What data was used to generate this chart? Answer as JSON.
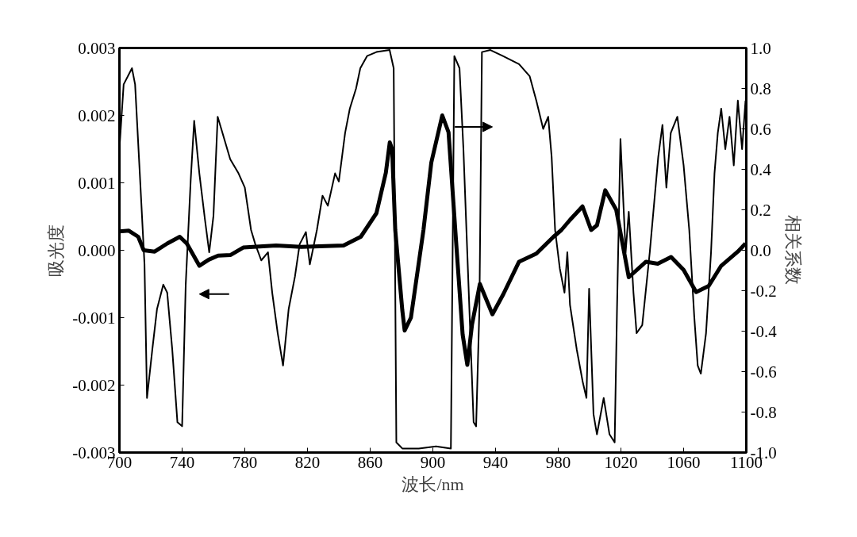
{
  "chart_data": {
    "type": "line",
    "xlabel": "波长/nm",
    "ylabel": "吸光度",
    "y2label": "相关系数",
    "xlim": [
      700,
      1100
    ],
    "xticks": [
      700,
      740,
      780,
      820,
      860,
      900,
      940,
      980,
      1020,
      1060,
      1100
    ],
    "ylim": [
      -0.003,
      0.003
    ],
    "yticks": [
      {
        "value": 0.003,
        "label": "0.003"
      },
      {
        "value": 0.002,
        "label": "0.002"
      },
      {
        "value": 0.001,
        "label": "0.001"
      },
      {
        "value": 0,
        "label": "0.000"
      },
      {
        "value": -0.001,
        "label": "-0.001"
      },
      {
        "value": -0.002,
        "label": "-0.002"
      },
      {
        "value": -0.003,
        "label": "-0.003"
      }
    ],
    "y2lim": [
      -1.0,
      1.0
    ],
    "y2ticks": [
      {
        "value": 1,
        "label": "1.0"
      },
      {
        "value": 0.8,
        "label": "0.8"
      },
      {
        "value": 0.6,
        "label": "0.6"
      },
      {
        "value": 0.4,
        "label": "0.4"
      },
      {
        "value": 0.2,
        "label": "0.2"
      },
      {
        "value": 0,
        "label": "0.0"
      },
      {
        "value": -0.2,
        "label": "-0.2"
      },
      {
        "value": -0.4,
        "label": "-0.4"
      },
      {
        "value": -0.6,
        "label": "-0.6"
      },
      {
        "value": -0.8,
        "label": "-0.8"
      },
      {
        "value": -1,
        "label": "-1.0"
      }
    ],
    "grid": false,
    "marker": "none",
    "line_style": "solid",
    "series": [
      {
        "color": "#000000",
        "x": [
          700,
          706,
          712,
          715.5,
          722.5,
          730.5,
          738.5,
          743,
          751,
          757,
          763,
          771,
          779,
          800,
          816,
          843,
          854,
          864,
          870,
          872.5,
          874,
          876,
          880.5,
          882,
          886,
          894,
          899,
          906,
          910,
          915,
          919,
          922,
          925,
          930,
          938,
          945,
          955,
          966,
          977,
          982,
          987.5,
          995.5,
          1001,
          1004.7,
          1010,
          1017,
          1025,
          1036,
          1043.5,
          1052,
          1060,
          1068,
          1076,
          1084,
          1094.6,
          1099.5
        ],
        "values": [
          0.00028,
          0.00029,
          0.0002,
          0,
          -2e-05,
          0.0001,
          0.0002,
          0.0001,
          -0.00023,
          -0.00014,
          -8e-05,
          -7e-05,
          4e-05,
          7e-05,
          5e-05,
          7e-05,
          0.0002,
          0.00055,
          0.00115,
          0.0016,
          0.0015,
          0.0003,
          -0.00089,
          -0.00119,
          -0.001,
          0.0003,
          0.0013,
          0.002,
          0.00175,
          7e-05,
          -0.00125,
          -0.0017,
          -0.0011,
          -0.0005,
          -0.00095,
          -0.00065,
          -0.00017,
          -5e-05,
          0.0002,
          0.0003,
          0.00045,
          0.00065,
          0.0003,
          0.00037,
          0.00089,
          0.0006,
          -0.0004,
          -0.00017,
          -0.0002,
          -0.0001,
          -0.00029,
          -0.00062,
          -0.00053,
          -0.00023,
          -2e-05,
          0.0001
        ]
      },
      {
        "color": "#000000",
        "axis": "y2",
        "x": [
          700,
          702.7,
          708,
          710,
          713,
          716,
          717.6,
          721,
          724,
          728,
          730.5,
          733.7,
          737,
          740,
          742.3,
          745.5,
          747.7,
          751,
          754.6,
          757.3,
          760,
          762.7,
          765,
          770.7,
          776,
          780,
          784,
          786.7,
          790.5,
          794.8,
          797.5,
          801,
          804.4,
          808,
          812,
          815,
          819,
          821.5,
          826,
          829.6,
          833,
          837.6,
          840,
          844,
          847,
          851,
          853.7,
          858,
          864,
          872.4,
          875,
          876.7,
          880.5,
          891,
          902,
          911.5,
          913.7,
          917,
          919.5,
          923.3,
          926,
          927.6,
          929.7,
          931.3,
          936.7,
          944.7,
          955,
          961.8,
          966,
          970.4,
          973.6,
          975.8,
          978,
          981,
          984,
          985.8,
          987.5,
          991.8,
          995.6,
          998,
          999.7,
          1002.5,
          1004.7,
          1009,
          1012.7,
          1016,
          1017.5,
          1019.7,
          1023,
          1025,
          1028,
          1030,
          1033.6,
          1038.4,
          1043.8,
          1046.5,
          1049,
          1051.8,
          1056,
          1060,
          1063.6,
          1066.8,
          1069,
          1071,
          1074.3,
          1077.5,
          1079.7,
          1081.8,
          1084,
          1086.6,
          1089.3,
          1092,
          1094.6,
          1097.3,
          1099.5
        ],
        "values": [
          0.5,
          0.82,
          0.9,
          0.82,
          0.38,
          -0.07,
          -0.73,
          -0.49,
          -0.29,
          -0.17,
          -0.21,
          -0.49,
          -0.85,
          -0.87,
          -0.17,
          0.35,
          0.64,
          0.38,
          0.15,
          -0.01,
          0.17,
          0.66,
          0.6,
          0.45,
          0.38,
          0.31,
          0.1,
          0.03,
          -0.05,
          -0.01,
          -0.21,
          -0.41,
          -0.57,
          -0.29,
          -0.13,
          0.03,
          0.09,
          -0.07,
          0.1,
          0.27,
          0.22,
          0.38,
          0.34,
          0.58,
          0.7,
          0.8,
          0.9,
          0.96,
          0.98,
          0.99,
          0.9,
          -0.95,
          -0.98,
          -0.98,
          -0.97,
          -0.98,
          0.96,
          0.9,
          0.5,
          -0.29,
          -0.85,
          -0.87,
          -0.29,
          0.98,
          0.99,
          0.96,
          0.92,
          0.86,
          0.74,
          0.6,
          0.66,
          0.46,
          0.1,
          -0.09,
          -0.21,
          -0.01,
          -0.27,
          -0.49,
          -0.65,
          -0.73,
          -0.19,
          -0.81,
          -0.91,
          -0.73,
          -0.91,
          -0.95,
          -0.29,
          0.55,
          -0.01,
          0.19,
          -0.21,
          -0.41,
          -0.37,
          -0.01,
          0.46,
          0.62,
          0.31,
          0.58,
          0.66,
          0.42,
          0.1,
          -0.33,
          -0.57,
          -0.61,
          -0.41,
          -0.01,
          0.38,
          0.58,
          0.7,
          0.5,
          0.66,
          0.42,
          0.74,
          0.5,
          0.74
        ]
      }
    ]
  }
}
